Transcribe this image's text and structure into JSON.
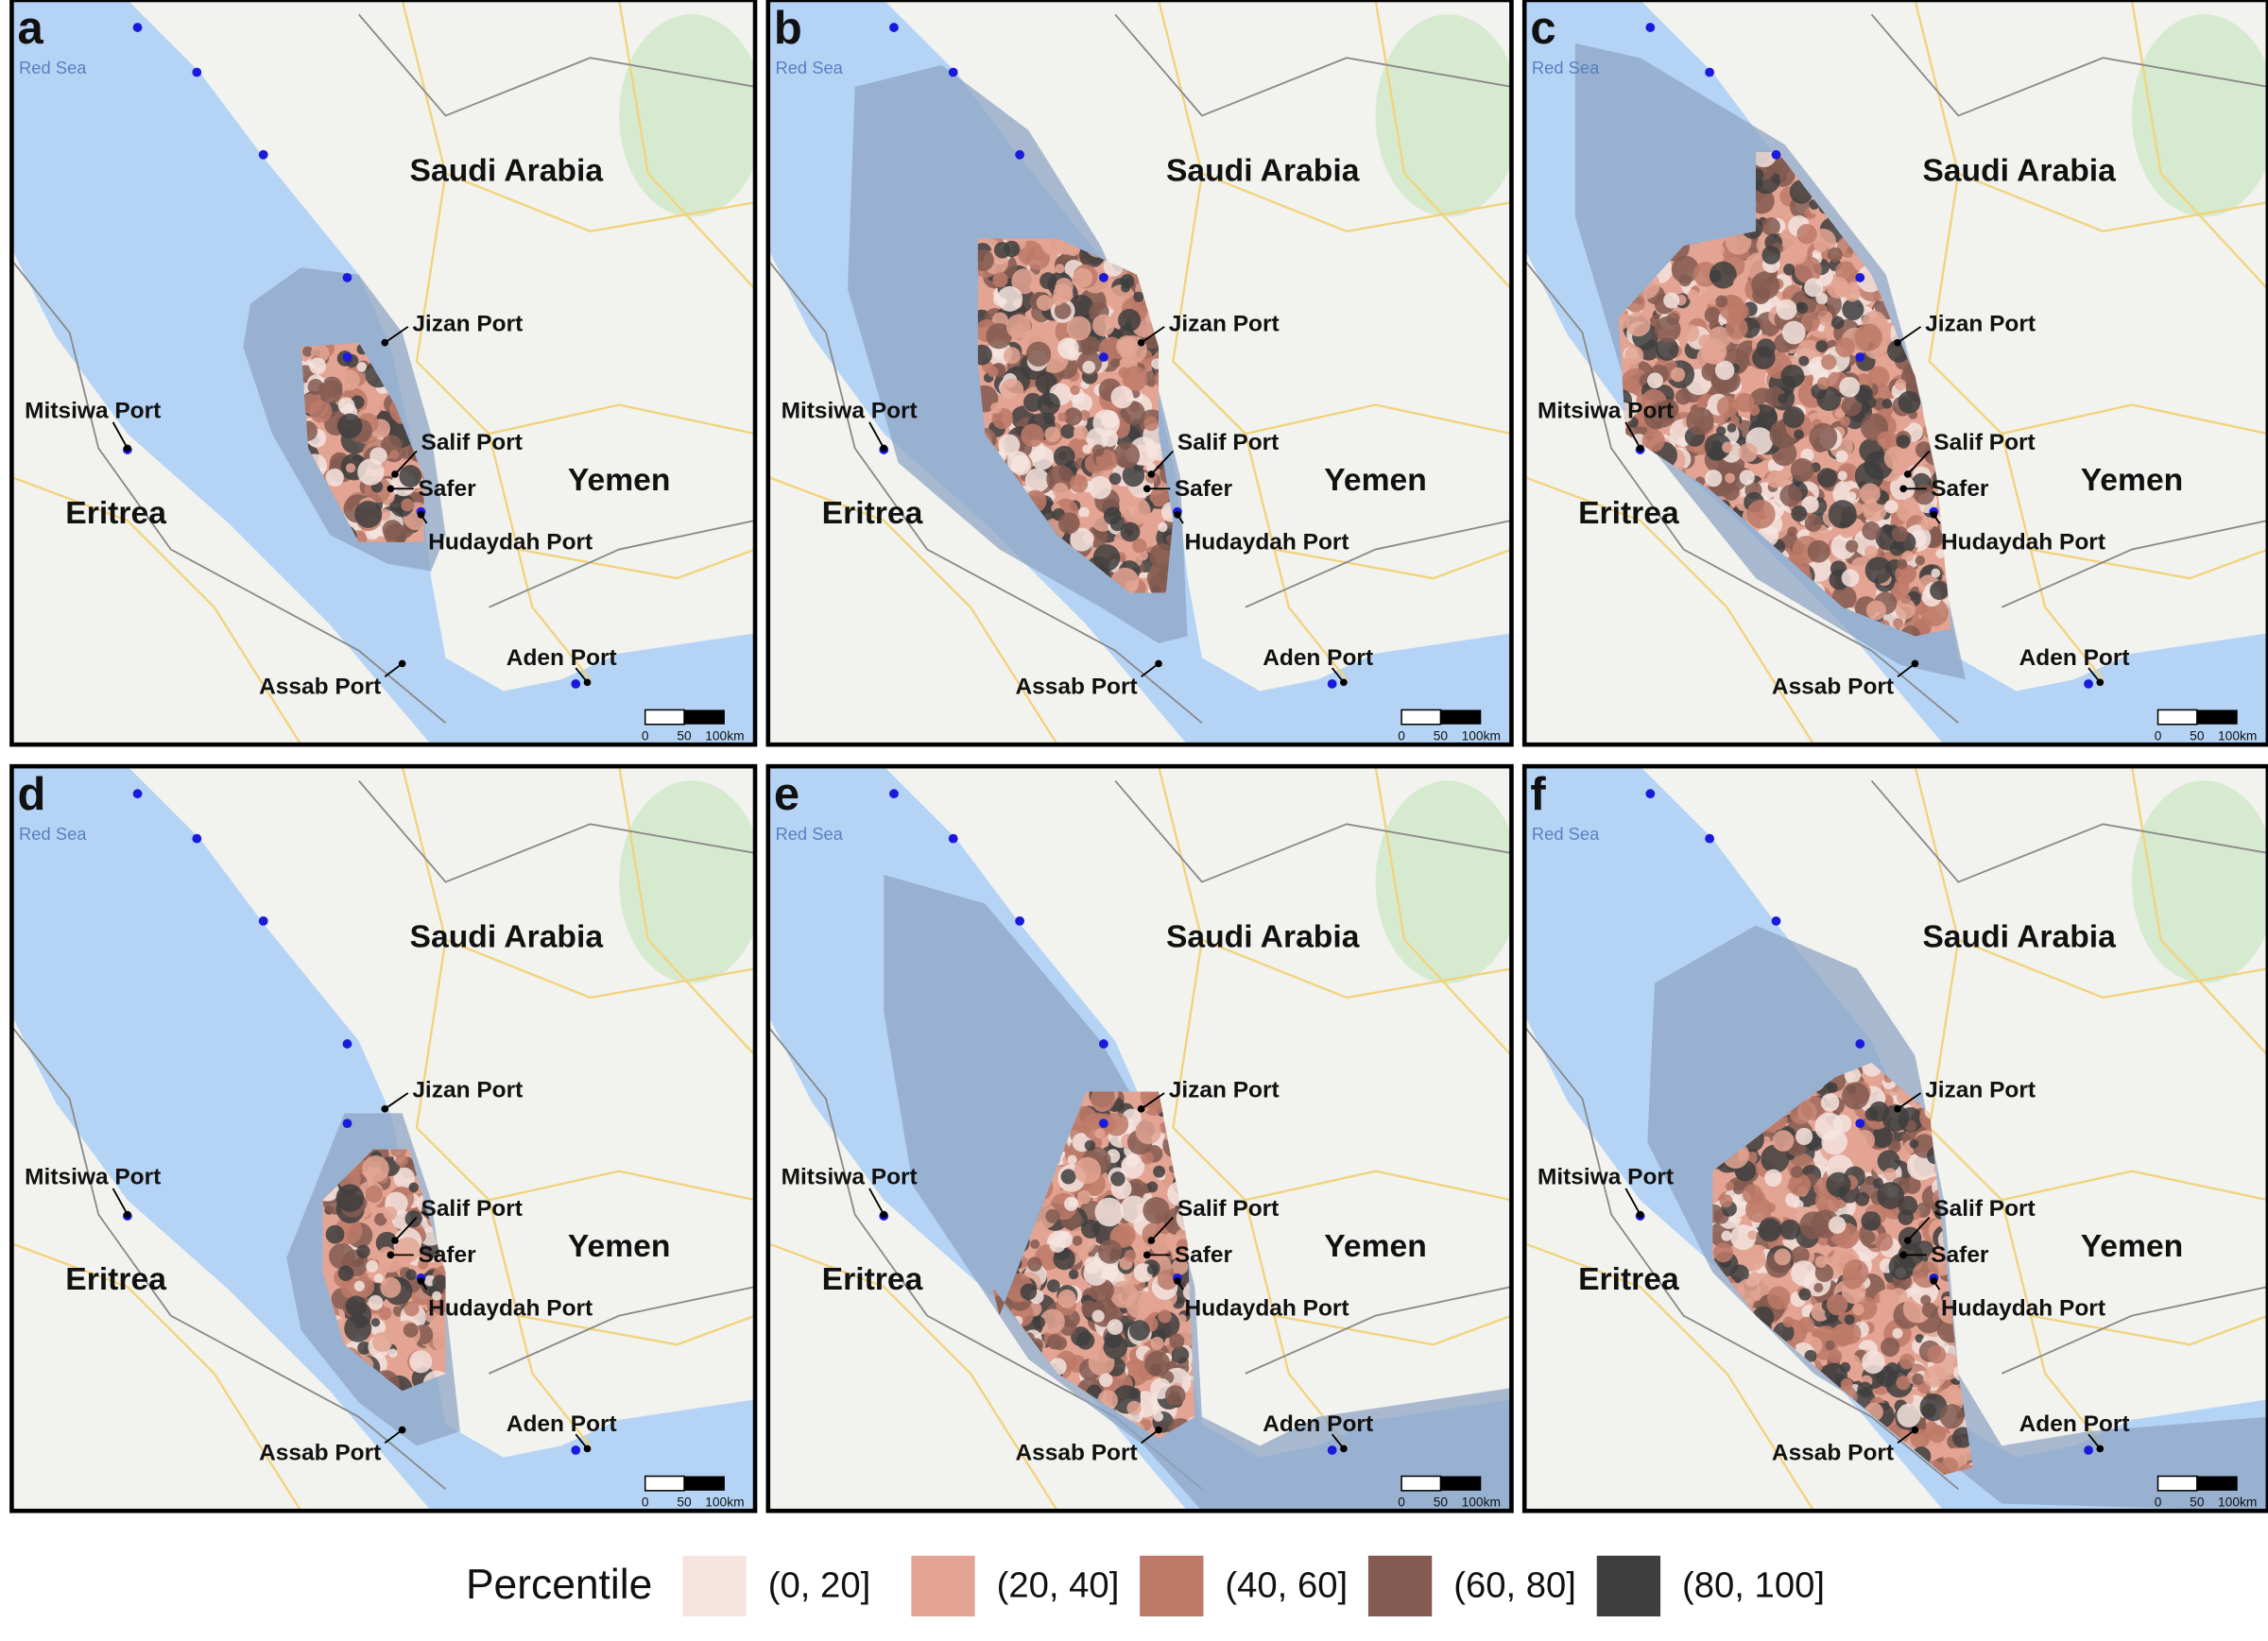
{
  "panels": [
    {
      "letter": "a"
    },
    {
      "letter": "b"
    },
    {
      "letter": "c"
    },
    {
      "letter": "d"
    },
    {
      "letter": "e"
    },
    {
      "letter": "f"
    }
  ],
  "sea_label": "Red Sea",
  "countries": [
    "Saudi Arabia",
    "Yemen",
    "Eritrea"
  ],
  "ports": [
    "Jizan Port",
    "Mitsiwa Port",
    "Salif Port",
    "Safer",
    "Hudaydah Port",
    "Aden Port",
    "Assab Port"
  ],
  "scale_labels": [
    "0",
    "50",
    "100km"
  ],
  "legend": {
    "title": "Percentile",
    "items": [
      {
        "label": "(0, 20]",
        "color": "#f5e4df"
      },
      {
        "label": "(20, 40]",
        "color": "#e3a493"
      },
      {
        "label": "(40, 60]",
        "color": "#bd7a68"
      },
      {
        "label": "(60, 80]",
        "color": "#835b50"
      },
      {
        "label": "(80, 100]",
        "color": "#3e3e3e"
      }
    ]
  }
}
